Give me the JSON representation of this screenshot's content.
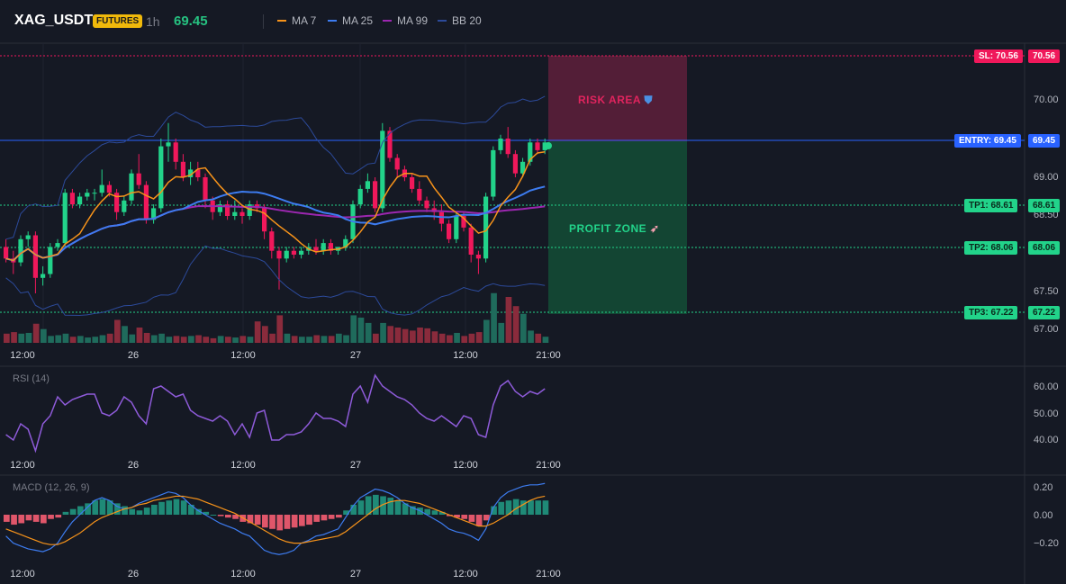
{
  "header": {
    "symbol": "XAG_USDT",
    "badge": "FUTURES",
    "timeframe": "1h",
    "price": "69.45",
    "legend": [
      {
        "name": "MA 7",
        "color": "#f7931a"
      },
      {
        "name": "MA 25",
        "color": "#3d7cf0"
      },
      {
        "name": "MA 99",
        "color": "#9c27b0"
      },
      {
        "name": "BB 20",
        "color": "#2c4a9a"
      }
    ]
  },
  "colors": {
    "up": "#22d38a",
    "down": "#f0185b",
    "bg": "#151924"
  },
  "rsi_label": "RSI (14)",
  "macd_label": "MACD (12, 26, 9)",
  "x_tick_labels": [
    "12:00",
    "26",
    "12:00",
    "27",
    "12:00",
    "21:00"
  ],
  "price_tick_labels": [
    "70.00",
    "69.00",
    "68.50",
    "67.50",
    "67.00"
  ],
  "rsi_tick_labels": [
    "60.00",
    "50.00",
    "40.00"
  ],
  "macd_tick_labels": [
    "0.20",
    "0.00",
    "−0.20"
  ],
  "levels": {
    "sl": {
      "tag": "SL: 70.56",
      "value": "70.56"
    },
    "entry": {
      "tag": "ENTRY: 69.45",
      "value": "69.45"
    },
    "tp1": {
      "tag": "TP1: 68.61",
      "value": "68.61"
    },
    "tp2": {
      "tag": "TP2: 68.06",
      "value": "68.06"
    },
    "tp3": {
      "tag": "TP3: 67.22",
      "value": "67.22"
    }
  },
  "zones": {
    "risk": "RISK AREA",
    "risk_icon": "shield-icon",
    "profit": "PROFIT ZONE",
    "profit_icon": "rocket-icon"
  },
  "chart_data": {
    "type": "candlestick",
    "candles": [
      {
        "o": 68.1,
        "h": 68.2,
        "l": 67.9,
        "c": 67.95
      },
      {
        "o": 67.95,
        "h": 68.05,
        "l": 67.75,
        "c": 67.9
      },
      {
        "o": 67.9,
        "h": 68.25,
        "l": 67.85,
        "c": 68.2
      },
      {
        "o": 68.2,
        "h": 68.3,
        "l": 68.1,
        "c": 68.25
      },
      {
        "o": 68.25,
        "h": 68.3,
        "l": 67.5,
        "c": 67.7
      },
      {
        "o": 67.7,
        "h": 67.85,
        "l": 67.6,
        "c": 67.75
      },
      {
        "o": 67.75,
        "h": 68.15,
        "l": 67.7,
        "c": 68.1
      },
      {
        "o": 68.1,
        "h": 68.2,
        "l": 68.05,
        "c": 68.15
      },
      {
        "o": 68.15,
        "h": 68.85,
        "l": 68.1,
        "c": 68.8
      },
      {
        "o": 68.8,
        "h": 68.85,
        "l": 68.6,
        "c": 68.65
      },
      {
        "o": 68.65,
        "h": 68.8,
        "l": 68.6,
        "c": 68.75
      },
      {
        "o": 68.75,
        "h": 68.85,
        "l": 68.7,
        "c": 68.8
      },
      {
        "o": 68.8,
        "h": 68.85,
        "l": 68.7,
        "c": 68.8
      },
      {
        "o": 68.8,
        "h": 69.1,
        "l": 68.75,
        "c": 68.9
      },
      {
        "o": 68.9,
        "h": 68.95,
        "l": 68.75,
        "c": 68.8
      },
      {
        "o": 68.8,
        "h": 68.85,
        "l": 68.45,
        "c": 68.55
      },
      {
        "o": 68.55,
        "h": 68.75,
        "l": 68.5,
        "c": 68.7
      },
      {
        "o": 68.7,
        "h": 69.1,
        "l": 68.65,
        "c": 69.05
      },
      {
        "o": 69.05,
        "h": 69.3,
        "l": 68.85,
        "c": 68.9
      },
      {
        "o": 68.9,
        "h": 68.95,
        "l": 68.4,
        "c": 68.45
      },
      {
        "o": 68.45,
        "h": 68.65,
        "l": 68.4,
        "c": 68.6
      },
      {
        "o": 68.6,
        "h": 69.5,
        "l": 68.55,
        "c": 69.4
      },
      {
        "o": 69.4,
        "h": 69.7,
        "l": 69.2,
        "c": 69.45
      },
      {
        "o": 69.45,
        "h": 69.5,
        "l": 69.1,
        "c": 69.2
      },
      {
        "o": 69.2,
        "h": 69.3,
        "l": 68.95,
        "c": 69.0
      },
      {
        "o": 69.0,
        "h": 69.2,
        "l": 68.9,
        "c": 69.1
      },
      {
        "o": 69.1,
        "h": 69.2,
        "l": 68.95,
        "c": 69.0
      },
      {
        "o": 69.0,
        "h": 69.05,
        "l": 68.6,
        "c": 68.7
      },
      {
        "o": 68.7,
        "h": 68.75,
        "l": 68.45,
        "c": 68.55
      },
      {
        "o": 68.55,
        "h": 68.7,
        "l": 68.5,
        "c": 68.65
      },
      {
        "o": 68.65,
        "h": 68.7,
        "l": 68.45,
        "c": 68.5
      },
      {
        "o": 68.5,
        "h": 68.7,
        "l": 68.45,
        "c": 68.55
      },
      {
        "o": 68.55,
        "h": 68.6,
        "l": 68.4,
        "c": 68.5
      },
      {
        "o": 68.5,
        "h": 68.7,
        "l": 68.45,
        "c": 68.65
      },
      {
        "o": 68.65,
        "h": 68.7,
        "l": 68.55,
        "c": 68.6
      },
      {
        "o": 68.6,
        "h": 68.65,
        "l": 68.2,
        "c": 68.3
      },
      {
        "o": 68.3,
        "h": 68.35,
        "l": 67.95,
        "c": 68.05
      },
      {
        "o": 68.05,
        "h": 68.1,
        "l": 67.55,
        "c": 67.95
      },
      {
        "o": 67.95,
        "h": 68.1,
        "l": 67.9,
        "c": 68.05
      },
      {
        "o": 68.05,
        "h": 68.1,
        "l": 67.95,
        "c": 68.0
      },
      {
        "o": 68.0,
        "h": 68.1,
        "l": 67.95,
        "c": 68.05
      },
      {
        "o": 68.05,
        "h": 68.15,
        "l": 68.0,
        "c": 68.1
      },
      {
        "o": 68.1,
        "h": 68.2,
        "l": 68.0,
        "c": 68.05
      },
      {
        "o": 68.05,
        "h": 68.2,
        "l": 68.0,
        "c": 68.15
      },
      {
        "o": 68.15,
        "h": 68.2,
        "l": 68.0,
        "c": 68.05
      },
      {
        "o": 68.05,
        "h": 68.1,
        "l": 68.0,
        "c": 68.1
      },
      {
        "o": 68.1,
        "h": 68.25,
        "l": 68.05,
        "c": 68.2
      },
      {
        "o": 68.2,
        "h": 68.7,
        "l": 68.15,
        "c": 68.65
      },
      {
        "o": 68.65,
        "h": 68.9,
        "l": 68.6,
        "c": 68.85
      },
      {
        "o": 68.85,
        "h": 69.05,
        "l": 68.8,
        "c": 68.95
      },
      {
        "o": 68.95,
        "h": 69.0,
        "l": 68.55,
        "c": 68.6
      },
      {
        "o": 68.6,
        "h": 69.7,
        "l": 68.55,
        "c": 69.6
      },
      {
        "o": 69.6,
        "h": 69.65,
        "l": 69.2,
        "c": 69.25
      },
      {
        "o": 69.25,
        "h": 69.3,
        "l": 69.0,
        "c": 69.1
      },
      {
        "o": 69.1,
        "h": 69.15,
        "l": 68.95,
        "c": 69.0
      },
      {
        "o": 69.0,
        "h": 69.05,
        "l": 68.8,
        "c": 68.85
      },
      {
        "o": 68.85,
        "h": 68.95,
        "l": 68.65,
        "c": 68.7
      },
      {
        "o": 68.7,
        "h": 68.75,
        "l": 68.55,
        "c": 68.6
      },
      {
        "o": 68.6,
        "h": 68.7,
        "l": 68.45,
        "c": 68.55
      },
      {
        "o": 68.55,
        "h": 68.65,
        "l": 68.3,
        "c": 68.4
      },
      {
        "o": 68.4,
        "h": 68.45,
        "l": 68.15,
        "c": 68.2
      },
      {
        "o": 68.2,
        "h": 68.55,
        "l": 68.15,
        "c": 68.5
      },
      {
        "o": 68.5,
        "h": 68.55,
        "l": 68.3,
        "c": 68.35
      },
      {
        "o": 68.35,
        "h": 68.4,
        "l": 67.9,
        "c": 68.0
      },
      {
        "o": 68.0,
        "h": 68.05,
        "l": 67.75,
        "c": 67.95
      },
      {
        "o": 67.95,
        "h": 68.8,
        "l": 67.9,
        "c": 68.75
      },
      {
        "o": 68.75,
        "h": 69.4,
        "l": 68.7,
        "c": 69.35
      },
      {
        "o": 69.35,
        "h": 69.55,
        "l": 69.3,
        "c": 69.5
      },
      {
        "o": 69.5,
        "h": 69.65,
        "l": 69.25,
        "c": 69.3
      },
      {
        "o": 69.3,
        "h": 69.35,
        "l": 69.0,
        "c": 69.05
      },
      {
        "o": 69.05,
        "h": 69.25,
        "l": 69.0,
        "c": 69.2
      },
      {
        "o": 69.2,
        "h": 69.5,
        "l": 69.15,
        "c": 69.45
      },
      {
        "o": 69.45,
        "h": 69.5,
        "l": 69.3,
        "c": 69.35
      },
      {
        "o": 69.35,
        "h": 69.5,
        "l": 69.3,
        "c": 69.45
      }
    ],
    "volume": [
      12,
      14,
      12,
      13,
      25,
      18,
      9,
      10,
      12,
      8,
      9,
      7,
      8,
      10,
      12,
      30,
      22,
      11,
      20,
      13,
      10,
      12,
      8,
      9,
      8,
      9,
      10,
      8,
      6,
      9,
      8,
      7,
      9,
      8,
      28,
      22,
      12,
      36,
      12,
      9,
      8,
      8,
      10,
      9,
      9,
      12,
      10,
      36,
      33,
      26,
      12,
      26,
      22,
      20,
      18,
      16,
      20,
      19,
      15,
      12,
      10,
      13,
      9,
      12,
      14,
      30,
      65,
      26,
      60,
      48,
      38,
      16,
      12,
      8
    ],
    "rsi": [
      42,
      40,
      46,
      44,
      36,
      46,
      49,
      56,
      53,
      55,
      56,
      57,
      57,
      50,
      49,
      51,
      56,
      54,
      49,
      46,
      59,
      60,
      58,
      56,
      57,
      51,
      49,
      48,
      47,
      49,
      47,
      42,
      46,
      41,
      50,
      51,
      40,
      40,
      42,
      42,
      43,
      46,
      50,
      48,
      48,
      47,
      45,
      57,
      60,
      54,
      64,
      60,
      58,
      56,
      55,
      53,
      50,
      48,
      47,
      49,
      47,
      45,
      49,
      48,
      42,
      41,
      53,
      60,
      62,
      58,
      56,
      58,
      57,
      59
    ],
    "macd_hist": [
      -0.05,
      -0.07,
      -0.06,
      -0.04,
      -0.05,
      -0.06,
      -0.03,
      -0.02,
      0.02,
      0.04,
      0.06,
      0.08,
      0.1,
      0.11,
      0.1,
      0.08,
      0.06,
      0.04,
      0.03,
      0.05,
      0.07,
      0.09,
      0.1,
      0.11,
      0.1,
      0.07,
      0.04,
      0.02,
      0.0,
      -0.01,
      -0.02,
      -0.03,
      -0.05,
      -0.06,
      -0.07,
      -0.09,
      -0.1,
      -0.11,
      -0.1,
      -0.09,
      -0.08,
      -0.07,
      -0.05,
      -0.04,
      -0.03,
      -0.02,
      0.03,
      0.07,
      0.1,
      0.13,
      0.14,
      0.13,
      0.12,
      0.1,
      0.08,
      0.06,
      0.05,
      0.04,
      0.03,
      0.02,
      -0.01,
      -0.02,
      -0.03,
      -0.05,
      -0.08,
      -0.04,
      0.06,
      0.09,
      0.1,
      0.11,
      0.1,
      0.1,
      0.1,
      0.1
    ],
    "macd_line": [
      -0.15,
      -0.2,
      -0.22,
      -0.24,
      -0.25,
      -0.26,
      -0.24,
      -0.2,
      -0.12,
      -0.05,
      0.0,
      0.05,
      0.1,
      0.12,
      0.1,
      0.06,
      0.04,
      0.05,
      0.08,
      0.1,
      0.12,
      0.14,
      0.16,
      0.15,
      0.12,
      0.07,
      0.03,
      0.0,
      -0.03,
      -0.06,
      -0.08,
      -0.1,
      -0.13,
      -0.15,
      -0.2,
      -0.25,
      -0.27,
      -0.28,
      -0.27,
      -0.25,
      -0.2,
      -0.18,
      -0.15,
      -0.14,
      -0.12,
      -0.1,
      -0.02,
      0.06,
      0.12,
      0.15,
      0.18,
      0.17,
      0.15,
      0.12,
      0.08,
      0.05,
      0.03,
      0.0,
      -0.03,
      -0.06,
      -0.1,
      -0.12,
      -0.13,
      -0.15,
      -0.18,
      -0.1,
      0.05,
      0.12,
      0.16,
      0.18,
      0.2,
      0.21,
      0.21,
      0.22
    ],
    "macd_signal": [
      -0.1,
      -0.12,
      -0.14,
      -0.16,
      -0.18,
      -0.2,
      -0.21,
      -0.21,
      -0.19,
      -0.16,
      -0.13,
      -0.09,
      -0.05,
      -0.02,
      0.0,
      0.02,
      0.04,
      0.05,
      0.07,
      0.08,
      0.1,
      0.11,
      0.12,
      0.13,
      0.13,
      0.12,
      0.11,
      0.09,
      0.07,
      0.05,
      0.03,
      0.01,
      -0.02,
      -0.05,
      -0.08,
      -0.11,
      -0.14,
      -0.17,
      -0.19,
      -0.2,
      -0.2,
      -0.19,
      -0.18,
      -0.17,
      -0.16,
      -0.15,
      -0.12,
      -0.08,
      -0.04,
      0.0,
      0.04,
      0.07,
      0.09,
      0.1,
      0.1,
      0.09,
      0.08,
      0.06,
      0.04,
      0.02,
      0.0,
      -0.02,
      -0.04,
      -0.06,
      -0.08,
      -0.08,
      -0.06,
      -0.03,
      0.0,
      0.04,
      0.07,
      0.1,
      0.12,
      0.13
    ]
  }
}
